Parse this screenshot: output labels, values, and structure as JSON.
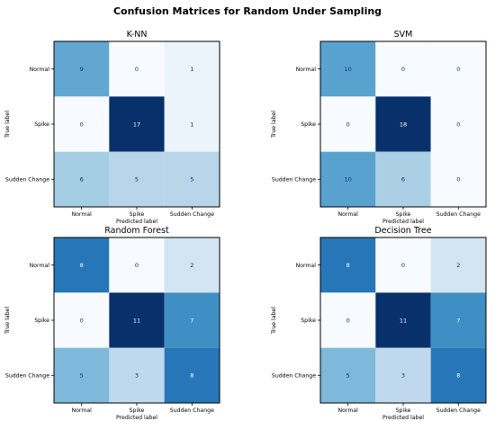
{
  "suptitle": "Confusion Matrices for Random Under Sampling",
  "chart_data": [
    {
      "type": "heatmap",
      "title": "K-NN",
      "xlabel": "Predicted label",
      "ylabel": "True label",
      "x_tick_labels": [
        "Normal",
        "Spike",
        "Sudden Change"
      ],
      "y_tick_labels": [
        "Normal",
        "Spike",
        "Sudden Change"
      ],
      "values": [
        [
          9,
          0,
          1
        ],
        [
          0,
          17,
          1
        ],
        [
          6,
          5,
          5
        ]
      ],
      "colormap": "Blues",
      "vmin": 0,
      "vmax": 17
    },
    {
      "type": "heatmap",
      "title": "SVM",
      "xlabel": "Predicted label",
      "ylabel": "True label",
      "x_tick_labels": [
        "Normal",
        "Spike",
        "Sudden Change"
      ],
      "y_tick_labels": [
        "Normal",
        "Spike",
        "Sudden Change"
      ],
      "values": [
        [
          10,
          0,
          0
        ],
        [
          0,
          18,
          0
        ],
        [
          10,
          6,
          0
        ]
      ],
      "colormap": "Blues",
      "vmin": 0,
      "vmax": 18
    },
    {
      "type": "heatmap",
      "title": "Random Forest",
      "xlabel": "Predicted label",
      "ylabel": "True label",
      "x_tick_labels": [
        "Normal",
        "Spike",
        "Sudden Change"
      ],
      "y_tick_labels": [
        "Normal",
        "Spike",
        "Sudden Change"
      ],
      "values": [
        [
          8,
          0,
          2
        ],
        [
          0,
          11,
          7
        ],
        [
          5,
          3,
          8
        ]
      ],
      "colormap": "Blues",
      "vmin": 0,
      "vmax": 11
    },
    {
      "type": "heatmap",
      "title": "Decision Tree",
      "xlabel": "Predicted label",
      "ylabel": "True label",
      "x_tick_labels": [
        "Normal",
        "Spike",
        "Sudden Change"
      ],
      "y_tick_labels": [
        "Normal",
        "Spike",
        "Sudden Change"
      ],
      "values": [
        [
          8,
          0,
          2
        ],
        [
          0,
          11,
          7
        ],
        [
          5,
          3,
          8
        ]
      ],
      "colormap": "Blues",
      "vmin": 0,
      "vmax": 11
    }
  ]
}
